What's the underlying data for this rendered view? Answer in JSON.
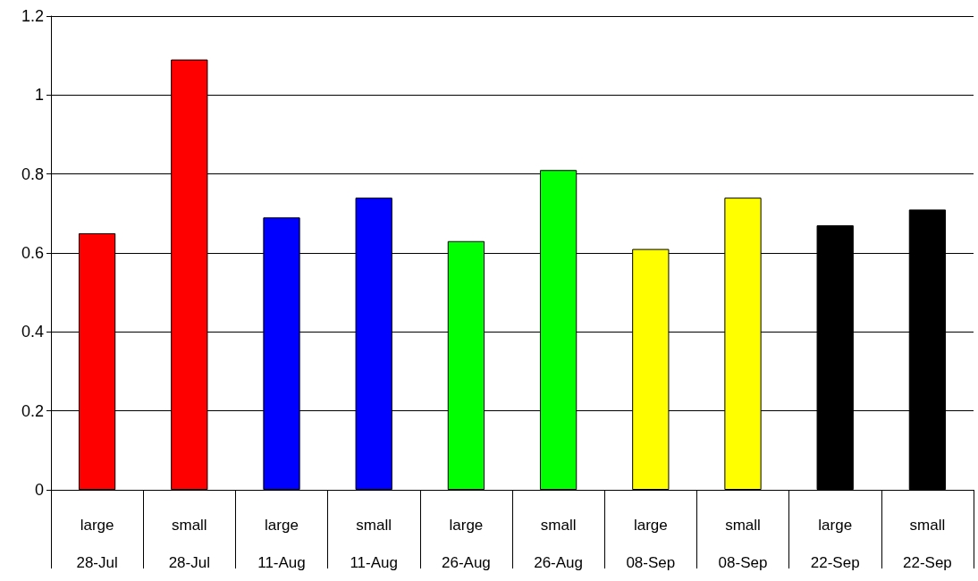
{
  "chart_data": {
    "type": "bar",
    "categories": [
      "large\n28-Jul",
      "small\n28-Jul",
      "large\n11-Aug",
      "small\n11-Aug",
      "large\n26-Aug",
      "small\n26-Aug",
      "large\n08-Sep",
      "small\n08-Sep",
      "large\n22-Sep",
      "small\n22-Sep"
    ],
    "values": [
      0.65,
      1.09,
      0.69,
      0.74,
      0.63,
      0.81,
      0.61,
      0.74,
      0.67,
      0.71
    ],
    "colors": [
      "#ff0000",
      "#ff0000",
      "#0000ff",
      "#0000ff",
      "#00ff00",
      "#00ff00",
      "#ffff00",
      "#ffff00",
      "#000000",
      "#000000"
    ],
    "ylim": [
      0,
      1.2
    ],
    "yticks": [
      0,
      0.2,
      0.4,
      0.6,
      0.8,
      1,
      1.2
    ],
    "grid": "y"
  }
}
